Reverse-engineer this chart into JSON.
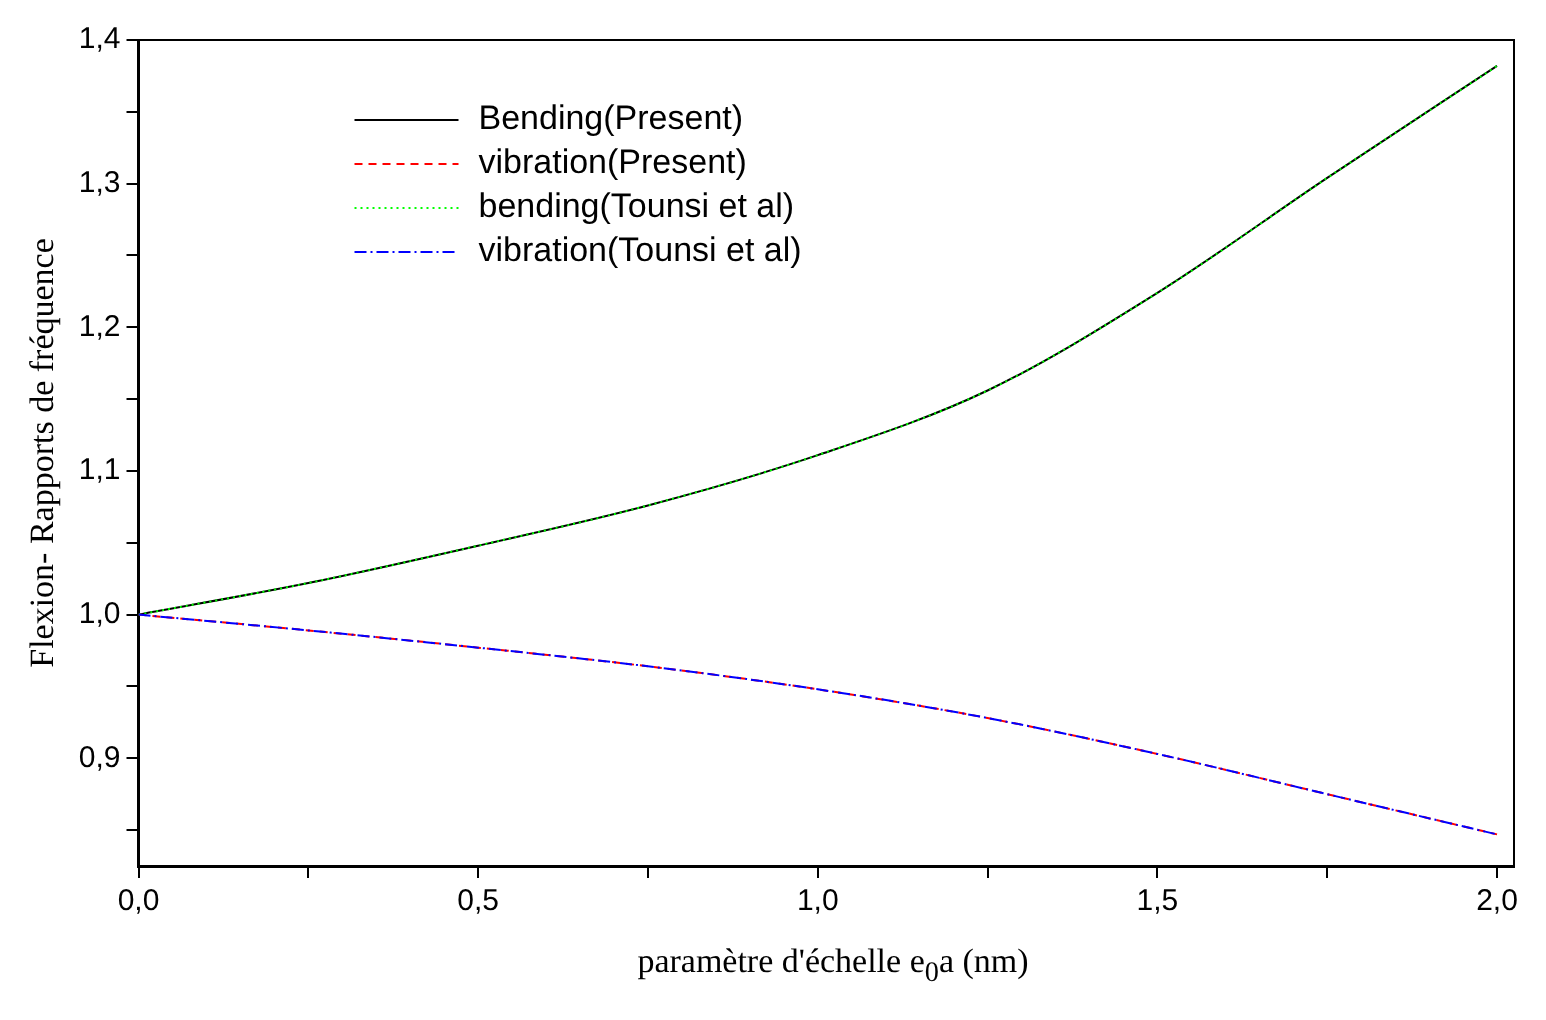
{
  "chart_data": {
    "type": "line",
    "xlabel": "paramètre d'échelle e$_{0}$a (nm)",
    "ylabel": "Flexion- Rapports de fréquence",
    "x": [
      0,
      0.25,
      0.5,
      0.75,
      1.0,
      1.25,
      1.5,
      1.75,
      2.0
    ],
    "series": [
      {
        "name": "Bending(Present)",
        "color": "#000000",
        "line_style": "solid",
        "values": [
          1.0,
          1.022,
          1.048,
          1.076,
          1.111,
          1.156,
          1.224,
          1.304,
          1.382
        ]
      },
      {
        "name": "vibration(Present)",
        "color": "#ff0000",
        "line_style": "dashed",
        "values": [
          1.0,
          0.989,
          0.977,
          0.964,
          0.948,
          0.928,
          0.903,
          0.875,
          0.847
        ]
      },
      {
        "name": "bending(Tounsi et al)",
        "color": "#00ff00",
        "line_style": "dotted",
        "values": [
          1.0,
          1.022,
          1.048,
          1.076,
          1.111,
          1.156,
          1.224,
          1.304,
          1.382
        ]
      },
      {
        "name": "vibration(Tounsi et al)",
        "color": "#0000ff",
        "line_style": "dashdot",
        "values": [
          1.0,
          0.989,
          0.977,
          0.964,
          0.948,
          0.928,
          0.903,
          0.875,
          0.847
        ]
      }
    ],
    "xlim": [
      0,
      2.025
    ],
    "ylim": [
      0.825,
      1.4
    ],
    "xticks": [
      {
        "value": 0,
        "label": "0,0"
      },
      {
        "value": 0.25,
        "label": null
      },
      {
        "value": 0.5,
        "label": "0,5"
      },
      {
        "value": 0.75,
        "label": null
      },
      {
        "value": 1.0,
        "label": "1,0"
      },
      {
        "value": 1.25,
        "label": null
      },
      {
        "value": 1.5,
        "label": "1,5"
      },
      {
        "value": 1.75,
        "label": null
      },
      {
        "value": 2.0,
        "label": "2,0"
      }
    ],
    "yticks": [
      {
        "value": 0.85,
        "label": null
      },
      {
        "value": 0.9,
        "label": "0,9"
      },
      {
        "value": 0.95,
        "label": null
      },
      {
        "value": 1.0,
        "label": "1,0"
      },
      {
        "value": 1.05,
        "label": null
      },
      {
        "value": 1.1,
        "label": "1,1"
      },
      {
        "value": 1.15,
        "label": null
      },
      {
        "value": 1.2,
        "label": "1,2"
      },
      {
        "value": 1.25,
        "label": null
      },
      {
        "value": 1.3,
        "label": "1,3"
      },
      {
        "value": 1.35,
        "label": null
      },
      {
        "value": 1.4,
        "label": "1,4"
      }
    ],
    "grid": false,
    "legend": "top left",
    "marker": "none"
  }
}
